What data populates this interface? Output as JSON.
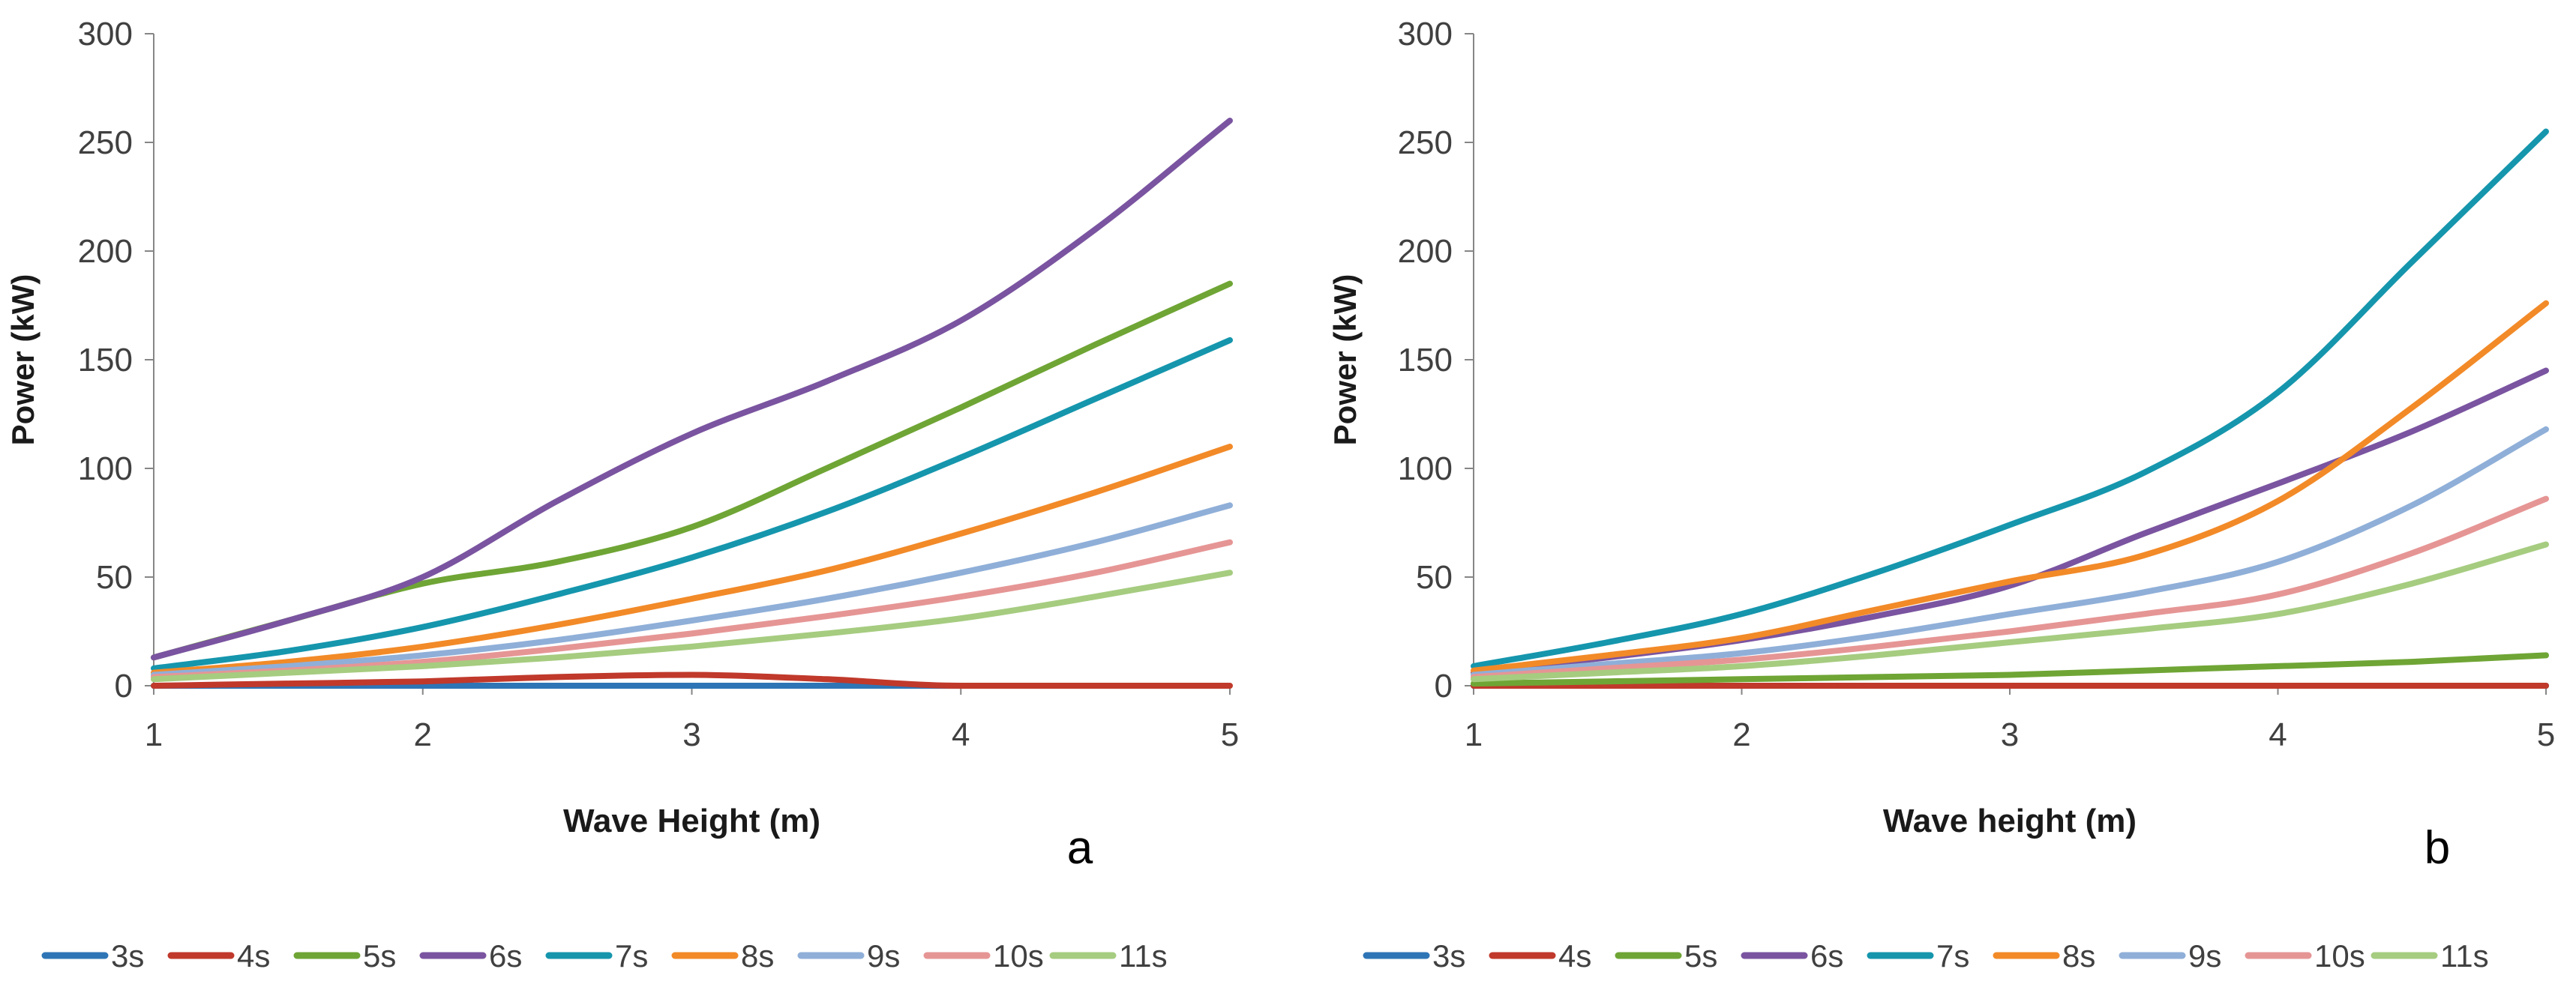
{
  "chart_data": [
    {
      "type": "line",
      "panel_label": "a",
      "xlabel": "Wave Height (m)",
      "ylabel": "Power (kW)",
      "xlim": [
        1,
        5
      ],
      "ylim": [
        0,
        300
      ],
      "xticks": [
        1,
        2,
        3,
        4,
        5
      ],
      "yticks": [
        0,
        50,
        100,
        150,
        200,
        250,
        300
      ],
      "grid": false,
      "legend_position": "bottom",
      "x": [
        1,
        1.5,
        2,
        2.5,
        3,
        3.5,
        4,
        4.5,
        5
      ],
      "series": [
        {
          "name": "3s",
          "color": "#2e75b6",
          "values": [
            0,
            0,
            0,
            0,
            0,
            0,
            0,
            null,
            null
          ]
        },
        {
          "name": "4s",
          "color": "#c0392b",
          "values": [
            0,
            1,
            2,
            4,
            5,
            3,
            0,
            0,
            0
          ]
        },
        {
          "name": "5s",
          "color": "#6fa535",
          "values": [
            13,
            30,
            47,
            57,
            73,
            100,
            128,
            157,
            185
          ]
        },
        {
          "name": "6s",
          "color": "#7a54a0",
          "values": [
            13,
            30,
            50,
            85,
            116,
            140,
            168,
            210,
            260
          ]
        },
        {
          "name": "7s",
          "color": "#1596ad",
          "values": [
            8,
            16,
            27,
            42,
            59,
            80,
            105,
            132,
            159
          ]
        },
        {
          "name": "8s",
          "color": "#f28a28",
          "values": [
            6,
            11,
            18,
            28,
            40,
            53,
            70,
            89,
            110
          ]
        },
        {
          "name": "9s",
          "color": "#8fafd8",
          "values": [
            5,
            9,
            14,
            21,
            30,
            40,
            52,
            66,
            83
          ]
        },
        {
          "name": "10s",
          "color": "#e69595",
          "values": [
            4,
            7,
            11,
            17,
            24,
            32,
            41,
            52,
            66
          ]
        },
        {
          "name": "11s",
          "color": "#a6cc80",
          "values": [
            3,
            6,
            9,
            13,
            18,
            24,
            31,
            41,
            52
          ]
        }
      ]
    },
    {
      "type": "line",
      "panel_label": "b",
      "xlabel": "Wave height (m)",
      "ylabel": "Power (kW)",
      "xlim": [
        1,
        5
      ],
      "ylim": [
        0,
        300
      ],
      "xticks": [
        1,
        2,
        3,
        4,
        5
      ],
      "yticks": [
        0,
        50,
        100,
        150,
        200,
        250,
        300
      ],
      "grid": false,
      "legend_position": "bottom",
      "x": [
        1,
        1.5,
        2,
        2.5,
        3,
        3.5,
        4,
        4.5,
        5
      ],
      "series": [
        {
          "name": "3s",
          "color": "#2e75b6",
          "values": [
            0,
            0,
            0,
            0,
            0,
            0,
            0,
            0,
            0
          ]
        },
        {
          "name": "4s",
          "color": "#c0392b",
          "values": [
            0,
            0,
            0,
            0,
            0,
            0,
            0,
            0,
            0
          ]
        },
        {
          "name": "5s",
          "color": "#6fa535",
          "values": [
            1,
            2,
            3,
            4,
            5,
            7,
            9,
            11,
            14
          ]
        },
        {
          "name": "6s",
          "color": "#7a54a0",
          "values": [
            6,
            13,
            21,
            32,
            46,
            70,
            93,
            117,
            145
          ]
        },
        {
          "name": "7s",
          "color": "#1596ad",
          "values": [
            9,
            20,
            33,
            52,
            74,
            98,
            135,
            195,
            255
          ]
        },
        {
          "name": "8s",
          "color": "#f28a28",
          "values": [
            7,
            14,
            22,
            35,
            48,
            60,
            85,
            128,
            176
          ]
        },
        {
          "name": "9s",
          "color": "#8fafd8",
          "values": [
            5,
            10,
            15,
            23,
            33,
            43,
            57,
            83,
            118
          ]
        },
        {
          "name": "10s",
          "color": "#e69595",
          "values": [
            4,
            8,
            12,
            18,
            25,
            33,
            42,
            61,
            86
          ]
        },
        {
          "name": "11s",
          "color": "#a6cc80",
          "values": [
            3,
            6,
            9,
            14,
            20,
            26,
            33,
            47,
            65
          ]
        }
      ]
    }
  ]
}
